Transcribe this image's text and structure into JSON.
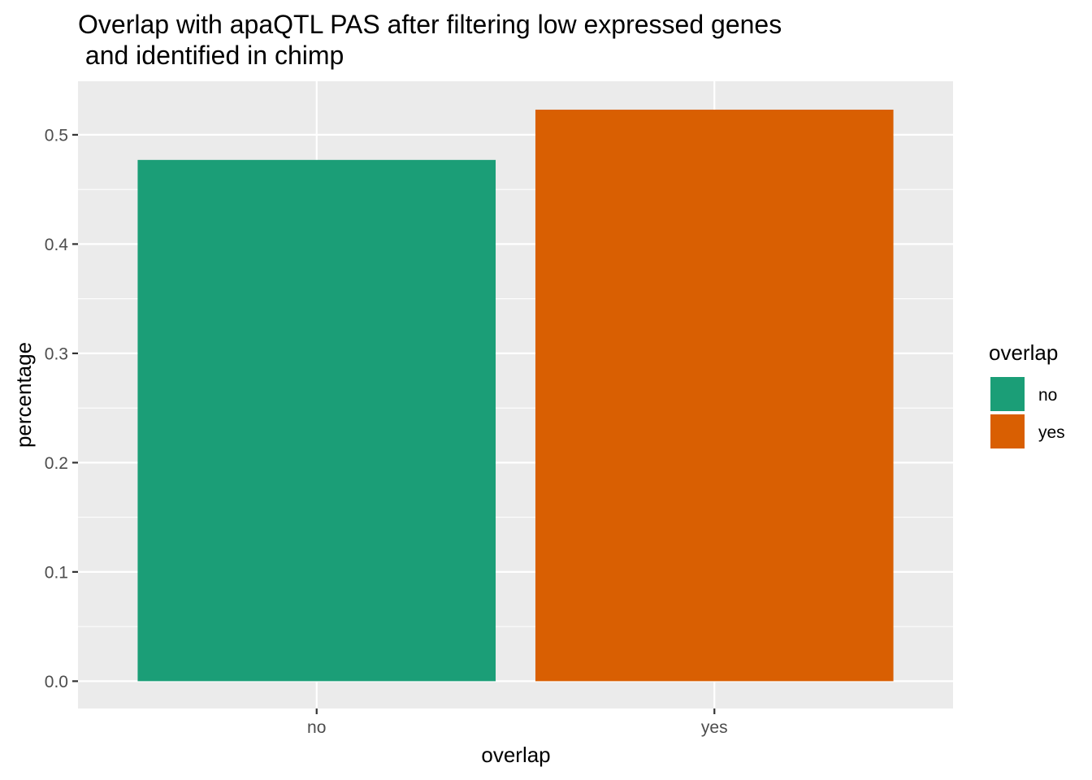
{
  "chart_data": {
    "type": "bar",
    "title": [
      "Overlap with apaQTL PAS after filtering low expressed genes",
      " and identified in chimp"
    ],
    "xlabel": "overlap",
    "ylabel": "percentage",
    "categories": [
      "no",
      "yes"
    ],
    "values": [
      0.477,
      0.523
    ],
    "colors": [
      "#1B9E77",
      "#D95F02"
    ],
    "ylim": [
      -0.025,
      0.549
    ],
    "yticks": [
      0.0,
      0.1,
      0.2,
      0.3,
      0.4,
      0.5
    ],
    "ytick_labels": [
      "0.0",
      "0.1",
      "0.2",
      "0.3",
      "0.4",
      "0.5"
    ],
    "grid": true,
    "panel_background": "#EBEBEB",
    "legend": {
      "title": "overlap",
      "position": "right",
      "entries": [
        {
          "label": "no",
          "color": "#1B9E77"
        },
        {
          "label": "yes",
          "color": "#D95F02"
        }
      ]
    }
  }
}
